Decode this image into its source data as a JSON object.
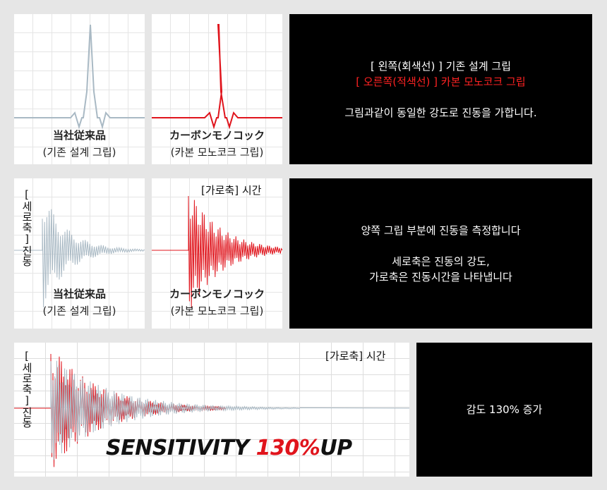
{
  "row1": {
    "left_caption_1": "当社従来品",
    "left_caption_2": "(기존 설계 그립)",
    "right_caption_1": "カーボンモノコック",
    "right_caption_2": "(카본 모노코크 그립)",
    "info_line1": "[ 왼쪽(회색선) ]  기존 설계 그립",
    "info_line2": "[ 오른쪽(적색선) ]  카본 모노코크 그립",
    "info_line3": "그림과같이  동일한 강도로 진동을 가합니다."
  },
  "row2": {
    "vertical_axis_label": "[세로축]진동",
    "horizontal_axis_label": "[가로축] 시간",
    "left_caption_1": "当社従来品",
    "left_caption_2": "(기존 설계 그립)",
    "right_caption_1": "カーボンモノコック",
    "right_caption_2": "(카본 모노코크 그립)",
    "info_line1": "양쪽 그립 부분에 진동을 측정합니다",
    "info_line2": "세로축은 진동의 강도,",
    "info_line3": "가로축은 진동시간을 나타냅니다"
  },
  "row3": {
    "vertical_axis_label": "[세로축]진동",
    "horizontal_axis_label": "[가로축] 시간",
    "banner_prefix": "SENSITIVITY ",
    "banner_number": "130%",
    "banner_suffix": "UP",
    "info_line1": "감도 130% 증가"
  },
  "colors": {
    "gray_signal": "#a9b9c4",
    "red_signal": "#e0141c",
    "background": "#e6e6e6"
  }
}
